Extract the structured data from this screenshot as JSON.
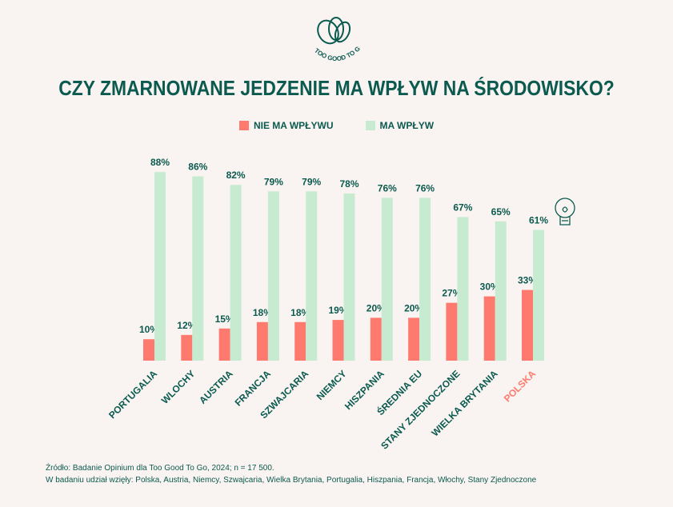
{
  "logo_text": "TOO GOOD TO GO",
  "title": "CZY ZMARNOWANE JEDZENIE MA WPŁYW NA ŚRODOWISKO?",
  "colors": {
    "background": "#f9f4f1",
    "text": "#0b5a4f",
    "nie_ma_wplywu": "#ff7a6e",
    "ma_wplyw": "#c6ebd0",
    "highlight": "#ff7a6e"
  },
  "chart_data": {
    "type": "bar",
    "title": "CZY ZMARNOWANE JEDZENIE MA WPŁYW NA ŚRODOWISKO?",
    "legend_position": "top",
    "grid": false,
    "ylim": [
      0,
      100
    ],
    "categories": [
      "PORTUGALIA",
      "WLOCHY",
      "AUSTRIA",
      "FRANCJA",
      "SZWAJCARIA",
      "NIEMCY",
      "HISZPANIA",
      "ŚREDNIA EU",
      "STANY ZJEDNOCZONE",
      "WIELKA BRYTANIA",
      "POLSKA"
    ],
    "highlight_category": "POLSKA",
    "series": [
      {
        "name": "NIE MA WPŁYWU",
        "color": "#ff7a6e",
        "values": [
          10,
          12,
          15,
          18,
          18,
          19,
          20,
          20,
          27,
          30,
          33
        ]
      },
      {
        "name": "MA WPŁYW",
        "color": "#c6ebd0",
        "values": [
          88,
          86,
          82,
          79,
          79,
          78,
          76,
          76,
          67,
          65,
          61
        ]
      }
    ],
    "value_suffix": "%"
  },
  "footnote": {
    "source": "Źródło: Badanie Opinium dla Too Good To Go, 2024; n = 17 500.",
    "participants": "W badaniu udział wzięły: Polska, Austria, Niemcy, Szwajcaria, Wielka Brytania, Portugalia, Hiszpania, Francja, Włochy, Stany Zjednoczone"
  }
}
